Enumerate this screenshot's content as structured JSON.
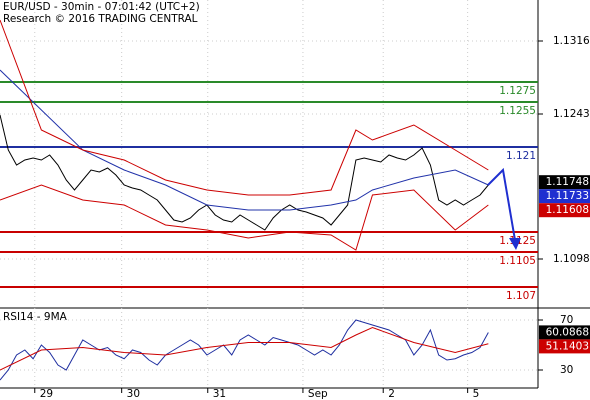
{
  "chart_data": {
    "type": "line",
    "title": "EUR/USD - 30min - 07:01:42 (UTC+2)",
    "subtitle": "Research © 2016 TRADING CENTRAL",
    "xlim": [
      0,
      65
    ],
    "xticks": [
      {
        "value": 4.2,
        "label": "29"
      },
      {
        "value": 14.7,
        "label": "30"
      },
      {
        "value": 25.1,
        "label": "31"
      },
      {
        "value": 36.6,
        "label": "Sep"
      },
      {
        "value": 46.3,
        "label": "2"
      },
      {
        "value": 56.5,
        "label": "5"
      }
    ],
    "ylim": [
      1.1049,
      1.1357
    ],
    "yticks": [
      1.1098,
      1.1243,
      1.1316
    ],
    "levels": [
      {
        "value": 1.1275,
        "color": "#2a8a2a"
      },
      {
        "value": 1.1255,
        "color": "#2a8a2a"
      },
      {
        "value": 1.121,
        "color": "#1f2fa0"
      },
      {
        "value": 1.1125,
        "color": "#c80000"
      },
      {
        "value": 1.1105,
        "color": "#c80000"
      },
      {
        "value": 1.107,
        "color": "#c80000"
      }
    ],
    "series": [
      {
        "color": "#000000",
        "values": [
          1.1242,
          1.1207,
          1.1192,
          1.1197,
          1.1199,
          1.1197,
          1.1202,
          1.1192,
          1.1177,
          1.1167,
          1.1177,
          1.1187,
          1.1185,
          1.1189,
          1.1182,
          1.1172,
          1.1169,
          1.1167,
          1.1162,
          1.1157,
          1.1147,
          1.1137,
          1.1135,
          1.1139,
          1.1147,
          1.1152,
          1.1142,
          1.1137,
          1.1135,
          1.1142,
          1.1137,
          1.1132,
          1.1127,
          1.1139,
          1.1147,
          1.1152,
          1.1147,
          1.1145,
          1.1142,
          1.1139,
          1.1132,
          1.1142,
          1.1152,
          1.1197,
          1.1199,
          1.1197,
          1.1195,
          1.1202,
          1.1199,
          1.1197,
          1.1202,
          1.1209,
          1.1192,
          1.1157,
          1.1152,
          1.1157,
          1.1152,
          1.1157,
          1.1162,
          1.1172
        ]
      },
      {
        "color": "#2233aa",
        "x": [
          0,
          5,
          10,
          15,
          20,
          25,
          30,
          35,
          40,
          43,
          45,
          50,
          55,
          59
        ],
        "values": [
          1.1287,
          1.1247,
          1.1207,
          1.1187,
          1.1172,
          1.1152,
          1.1147,
          1.1147,
          1.1152,
          1.1157,
          1.1167,
          1.1179,
          1.1187,
          1.1172
        ]
      },
      {
        "color": "#cc0000",
        "x": [
          0,
          5,
          10,
          15,
          20,
          25,
          30,
          35,
          40,
          43,
          45,
          50,
          55,
          59
        ],
        "values": [
          1.1337,
          1.1227,
          1.1207,
          1.1197,
          1.1177,
          1.1167,
          1.1162,
          1.1162,
          1.1167,
          1.1227,
          1.1217,
          1.1232,
          1.1207,
          1.1187
        ]
      },
      {
        "color": "#cc0000",
        "x": [
          0,
          5,
          10,
          15,
          20,
          25,
          30,
          35,
          40,
          43,
          45,
          50,
          55,
          59
        ],
        "values": [
          1.1157,
          1.1172,
          1.1157,
          1.1152,
          1.1132,
          1.1127,
          1.1119,
          1.1125,
          1.1122,
          1.1107,
          1.1162,
          1.1167,
          1.1127,
          1.1152
        ]
      }
    ],
    "last_values": [
      {
        "value": 1.11748,
        "color": "#000000"
      },
      {
        "value": 1.11733,
        "color": "#1f2fd0"
      },
      {
        "value": 1.11608,
        "color": "#cc0000"
      }
    ],
    "rsi": {
      "title": "RSI14 - 9MA",
      "ylim": [
        14,
        78
      ],
      "yticks": [
        30,
        70
      ],
      "series": [
        {
          "color": "#1f2fa0",
          "values": [
            22,
            30,
            42,
            46,
            39,
            50,
            44,
            34,
            30,
            42,
            54,
            50,
            46,
            48,
            42,
            39,
            46,
            44,
            38,
            34,
            42,
            46,
            50,
            54,
            50,
            42,
            46,
            50,
            42,
            54,
            58,
            54,
            50,
            56,
            54,
            52,
            50,
            46,
            42,
            46,
            42,
            50,
            62,
            70,
            68,
            66,
            64,
            62,
            58,
            54,
            42,
            50,
            62,
            42,
            38,
            39,
            42,
            44,
            48,
            60
          ]
        },
        {
          "color": "#cc0000",
          "x": [
            0,
            5,
            10,
            15,
            20,
            25,
            30,
            35,
            40,
            43,
            45,
            50,
            55,
            59
          ],
          "values": [
            30,
            46,
            48,
            44,
            42,
            48,
            52,
            52,
            48,
            58,
            64,
            52,
            44,
            51
          ]
        }
      ],
      "last_values": [
        {
          "value": 60.0868,
          "color": "#000000"
        },
        {
          "value": 51.1403,
          "color": "#cc0000"
        }
      ]
    }
  }
}
